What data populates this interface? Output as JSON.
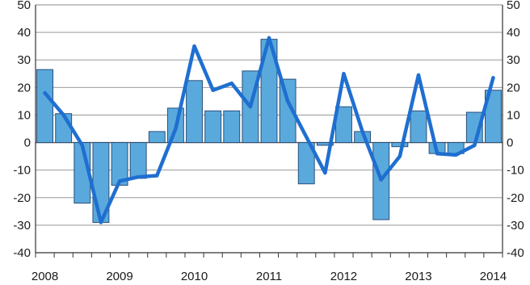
{
  "chart_data": {
    "type": "bar",
    "title": "",
    "xlabel": "",
    "ylabel": "",
    "ylim": [
      -40,
      50
    ],
    "y_ticks": [
      50,
      40,
      30,
      20,
      10,
      0,
      -10,
      -20,
      -30,
      -40
    ],
    "y_ticks_right": [
      "50",
      "40",
      "30",
      "20",
      "10",
      "0",
      "-10",
      "-20",
      "-30",
      "-40"
    ],
    "x_tick_labels": [
      "2008",
      "2009",
      "2010",
      "2011",
      "2012",
      "2013",
      "2014"
    ],
    "grid": true,
    "categories": [
      "2008Q1",
      "2008Q2",
      "2008Q3",
      "2008Q4",
      "2009Q1",
      "2009Q2",
      "2009Q3",
      "2009Q4",
      "2010Q1",
      "2010Q2",
      "2010Q3",
      "2010Q4",
      "2011Q1",
      "2011Q2",
      "2011Q3",
      "2011Q4",
      "2012Q1",
      "2012Q2",
      "2012Q3",
      "2012Q4",
      "2013Q1",
      "2013Q2",
      "2013Q3",
      "2013Q4",
      "2014Q1"
    ],
    "series": [
      {
        "type": "bar",
        "color": "#5aa9dc",
        "values": [
          26.5,
          10.5,
          -22,
          -29,
          -15.5,
          -13,
          4,
          12.5,
          22.5,
          11.5,
          11.5,
          26,
          37.5,
          23,
          -15,
          -1,
          13,
          4,
          -28,
          -1.5,
          11.5,
          -4,
          -4,
          11,
          19
        ]
      },
      {
        "type": "line",
        "color": "#1f6fd1",
        "values": [
          18,
          10,
          -1,
          -29,
          -14,
          -12.5,
          -12,
          5,
          35,
          19,
          21.5,
          13,
          38,
          15,
          2,
          -11,
          25,
          4,
          -13.5,
          -5,
          24.5,
          -4,
          -4.5,
          -1,
          23.5
        ]
      }
    ]
  }
}
